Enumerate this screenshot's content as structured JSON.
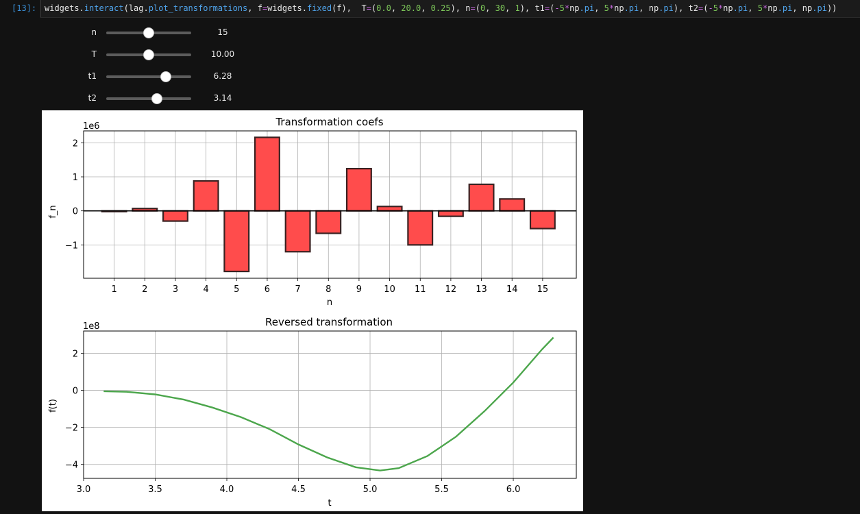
{
  "cell": {
    "prompt": "[13]:",
    "code_parts": [
      {
        "t": "widgets",
        "c": ""
      },
      {
        "t": ".",
        "c": ""
      },
      {
        "t": "interact",
        "c": "attr"
      },
      {
        "t": "(lag",
        "c": ""
      },
      {
        "t": ".",
        "c": ""
      },
      {
        "t": "plot_transformations",
        "c": "attr"
      },
      {
        "t": ", f",
        "c": ""
      },
      {
        "t": "=",
        "c": "op"
      },
      {
        "t": "widgets",
        "c": ""
      },
      {
        "t": ".",
        "c": ""
      },
      {
        "t": "fixed",
        "c": "attr"
      },
      {
        "t": "(f),  T",
        "c": ""
      },
      {
        "t": "=",
        "c": "op"
      },
      {
        "t": "(",
        "c": ""
      },
      {
        "t": "0.0",
        "c": "num"
      },
      {
        "t": ", ",
        "c": ""
      },
      {
        "t": "20.0",
        "c": "num"
      },
      {
        "t": ", ",
        "c": ""
      },
      {
        "t": "0.25",
        "c": "num"
      },
      {
        "t": "), n",
        "c": ""
      },
      {
        "t": "=",
        "c": "op"
      },
      {
        "t": "(",
        "c": ""
      },
      {
        "t": "0",
        "c": "num"
      },
      {
        "t": ", ",
        "c": ""
      },
      {
        "t": "30",
        "c": "num"
      },
      {
        "t": ", ",
        "c": ""
      },
      {
        "t": "1",
        "c": "num"
      },
      {
        "t": "), t1",
        "c": ""
      },
      {
        "t": "=",
        "c": "op"
      },
      {
        "t": "(",
        "c": ""
      },
      {
        "t": "-",
        "c": "op"
      },
      {
        "t": "5",
        "c": "num"
      },
      {
        "t": "*",
        "c": "op"
      },
      {
        "t": "np",
        "c": ""
      },
      {
        "t": ".pi",
        "c": "attr"
      },
      {
        "t": ", ",
        "c": ""
      },
      {
        "t": "5",
        "c": "num"
      },
      {
        "t": "*",
        "c": "op"
      },
      {
        "t": "np",
        "c": ""
      },
      {
        "t": ".pi",
        "c": "attr"
      },
      {
        "t": ", np",
        "c": ""
      },
      {
        "t": ".pi",
        "c": "attr"
      },
      {
        "t": "), t2",
        "c": ""
      },
      {
        "t": "=",
        "c": "op"
      },
      {
        "t": "(",
        "c": ""
      },
      {
        "t": "-",
        "c": "op"
      },
      {
        "t": "5",
        "c": "num"
      },
      {
        "t": "*",
        "c": "op"
      },
      {
        "t": "np",
        "c": ""
      },
      {
        "t": ".pi",
        "c": "attr"
      },
      {
        "t": ", ",
        "c": ""
      },
      {
        "t": "5",
        "c": "num"
      },
      {
        "t": "*",
        "c": "op"
      },
      {
        "t": "np",
        "c": ""
      },
      {
        "t": ".pi",
        "c": "attr"
      },
      {
        "t": ", np",
        "c": ""
      },
      {
        "t": ".pi",
        "c": "attr"
      },
      {
        "t": "))",
        "c": ""
      }
    ]
  },
  "sliders": [
    {
      "label": "n",
      "value": "15",
      "fraction": 0.5
    },
    {
      "label": "T",
      "value": "10.00",
      "fraction": 0.5
    },
    {
      "label": "t1",
      "value": "6.28",
      "fraction": 0.7
    },
    {
      "label": "t2",
      "value": "3.14",
      "fraction": 0.6
    }
  ],
  "colors": {
    "bar_fill": "#ff4c4c",
    "bar_edge": "#3a2222",
    "line": "#4ca64c",
    "grid": "#b0b0b0"
  },
  "chart_data": [
    {
      "type": "bar",
      "title": "Transformation coefs",
      "xlabel": "n",
      "ylabel": "f_n",
      "offset_text": "1e6",
      "categories": [
        "1",
        "2",
        "3",
        "4",
        "5",
        "6",
        "7",
        "8",
        "9",
        "10",
        "11",
        "12",
        "13",
        "14",
        "15"
      ],
      "values": [
        -0.02,
        0.07,
        -0.3,
        0.88,
        -1.78,
        2.16,
        -1.2,
        -0.66,
        1.24,
        0.13,
        -1.0,
        -0.16,
        0.78,
        0.35,
        -0.52
      ],
      "ylim": [
        -1.98,
        2.35
      ],
      "xlim": [
        0.0,
        16.1
      ],
      "yticks": [
        -1,
        0,
        1,
        2
      ],
      "ytick_labels": [
        "−1",
        "0",
        "1",
        "2"
      ],
      "grid": true,
      "zero_line": true
    },
    {
      "type": "line",
      "title": "Reversed transformation",
      "xlabel": "t",
      "ylabel": "f(t)",
      "offset_text": "1e8",
      "x": [
        3.14,
        3.3,
        3.5,
        3.7,
        3.9,
        4.1,
        4.3,
        4.5,
        4.7,
        4.9,
        5.07,
        5.2,
        5.4,
        5.6,
        5.8,
        6.0,
        6.2,
        6.28
      ],
      "y": [
        -0.05,
        -0.08,
        -0.22,
        -0.5,
        -0.93,
        -1.45,
        -2.1,
        -2.92,
        -3.62,
        -4.15,
        -4.33,
        -4.2,
        -3.55,
        -2.5,
        -1.12,
        0.42,
        2.2,
        2.85
      ],
      "xlim": [
        3.0,
        6.44
      ],
      "ylim": [
        -4.75,
        3.2
      ],
      "xticks": [
        3.0,
        3.5,
        4.0,
        4.5,
        5.0,
        5.5,
        6.0
      ],
      "xtick_labels": [
        "3.0",
        "3.5",
        "4.0",
        "4.5",
        "5.0",
        "5.5",
        "6.0"
      ],
      "yticks": [
        -4,
        -2,
        0,
        2
      ],
      "ytick_labels": [
        "−4",
        "−2",
        "0",
        "2"
      ],
      "grid": true
    }
  ]
}
